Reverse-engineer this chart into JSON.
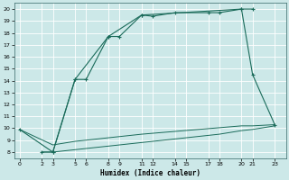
{
  "xlabel": "Humidex (Indice chaleur)",
  "bg_color": "#cce8e8",
  "grid_color": "#aad4d4",
  "line_color": "#1a6b5a",
  "xlim": [
    -0.5,
    24
  ],
  "ylim": [
    7.5,
    20.5
  ],
  "xticks": [
    0,
    2,
    3,
    5,
    6,
    8,
    9,
    11,
    12,
    14,
    15,
    17,
    18,
    20,
    21,
    23
  ],
  "yticks": [
    8,
    9,
    10,
    11,
    12,
    13,
    14,
    15,
    16,
    17,
    18,
    19,
    20
  ],
  "line1_x": [
    2,
    3,
    5,
    6,
    8,
    9,
    11,
    12,
    14,
    17,
    18,
    20,
    21
  ],
  "line1_y": [
    8.0,
    8.0,
    14.1,
    14.1,
    17.7,
    17.7,
    19.5,
    19.4,
    19.7,
    19.7,
    19.7,
    20.0,
    20.0
  ],
  "line2_x": [
    0,
    3,
    5,
    8,
    11,
    20,
    21,
    23
  ],
  "line2_y": [
    9.9,
    8.0,
    14.1,
    17.7,
    19.5,
    20.0,
    14.5,
    10.3
  ],
  "line3_x": [
    2,
    3,
    5,
    6,
    8,
    9,
    11,
    12,
    14,
    15,
    17,
    18,
    20,
    21,
    23
  ],
  "line3_y": [
    8.0,
    8.0,
    8.2,
    8.3,
    8.5,
    8.6,
    8.8,
    8.9,
    9.1,
    9.2,
    9.4,
    9.5,
    9.8,
    9.9,
    10.2
  ],
  "line4_x": [
    0,
    3,
    5,
    8,
    11,
    20,
    21,
    23
  ],
  "line4_y": [
    9.9,
    8.6,
    8.9,
    9.2,
    9.5,
    10.2,
    10.2,
    10.3
  ]
}
